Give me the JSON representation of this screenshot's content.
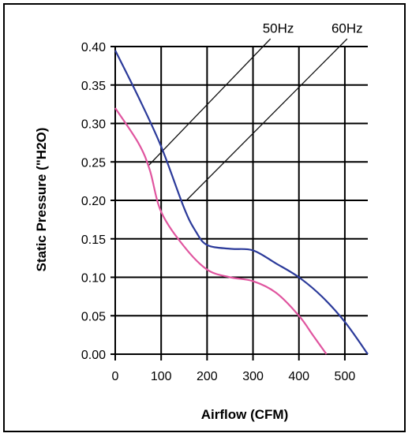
{
  "chart_data": {
    "type": "line",
    "title": "",
    "xlabel": "Airflow (CFM)",
    "ylabel": "Static Pressure (\"H2O)",
    "xlim": [
      0,
      550
    ],
    "ylim": [
      0,
      0.4
    ],
    "grid": true,
    "x_ticks": [
      "0",
      "100",
      "200",
      "300",
      "400",
      "500"
    ],
    "x_tick_values": [
      0,
      100,
      200,
      300,
      400,
      500
    ],
    "y_ticks": [
      "0.00",
      "0.05",
      "0.10",
      "0.15",
      "0.20",
      "0.25",
      "0.30",
      "0.35",
      "0.40"
    ],
    "y_tick_values": [
      0,
      0.05,
      0.1,
      0.15,
      0.2,
      0.25,
      0.3,
      0.35,
      0.4
    ],
    "series": [
      {
        "color": "#2b3a9a",
        "x": [
          0,
          50,
          100,
          150,
          175,
          200,
          250,
          300,
          350,
          400,
          450,
          500,
          550
        ],
        "y": [
          0.395,
          0.335,
          0.27,
          0.19,
          0.16,
          0.142,
          0.137,
          0.135,
          0.118,
          0.1,
          0.075,
          0.042,
          0
        ]
      },
      {
        "color": "#e0559f",
        "x": [
          0,
          50,
          75,
          100,
          150,
          200,
          250,
          300,
          350,
          400,
          430,
          460
        ],
        "y": [
          0.32,
          0.275,
          0.24,
          0.185,
          0.14,
          0.11,
          0.1,
          0.095,
          0.08,
          0.05,
          0.025,
          0
        ]
      }
    ],
    "annotations": [
      {
        "text": "50Hz",
        "x": 355,
        "y": 0.424,
        "line": [
          [
            72,
            0.245
          ],
          [
            338,
            0.41
          ]
        ]
      },
      {
        "text": "60Hz",
        "x": 505,
        "y": 0.424,
        "line": [
          [
            155,
            0.2
          ],
          [
            505,
            0.41
          ]
        ]
      }
    ]
  }
}
